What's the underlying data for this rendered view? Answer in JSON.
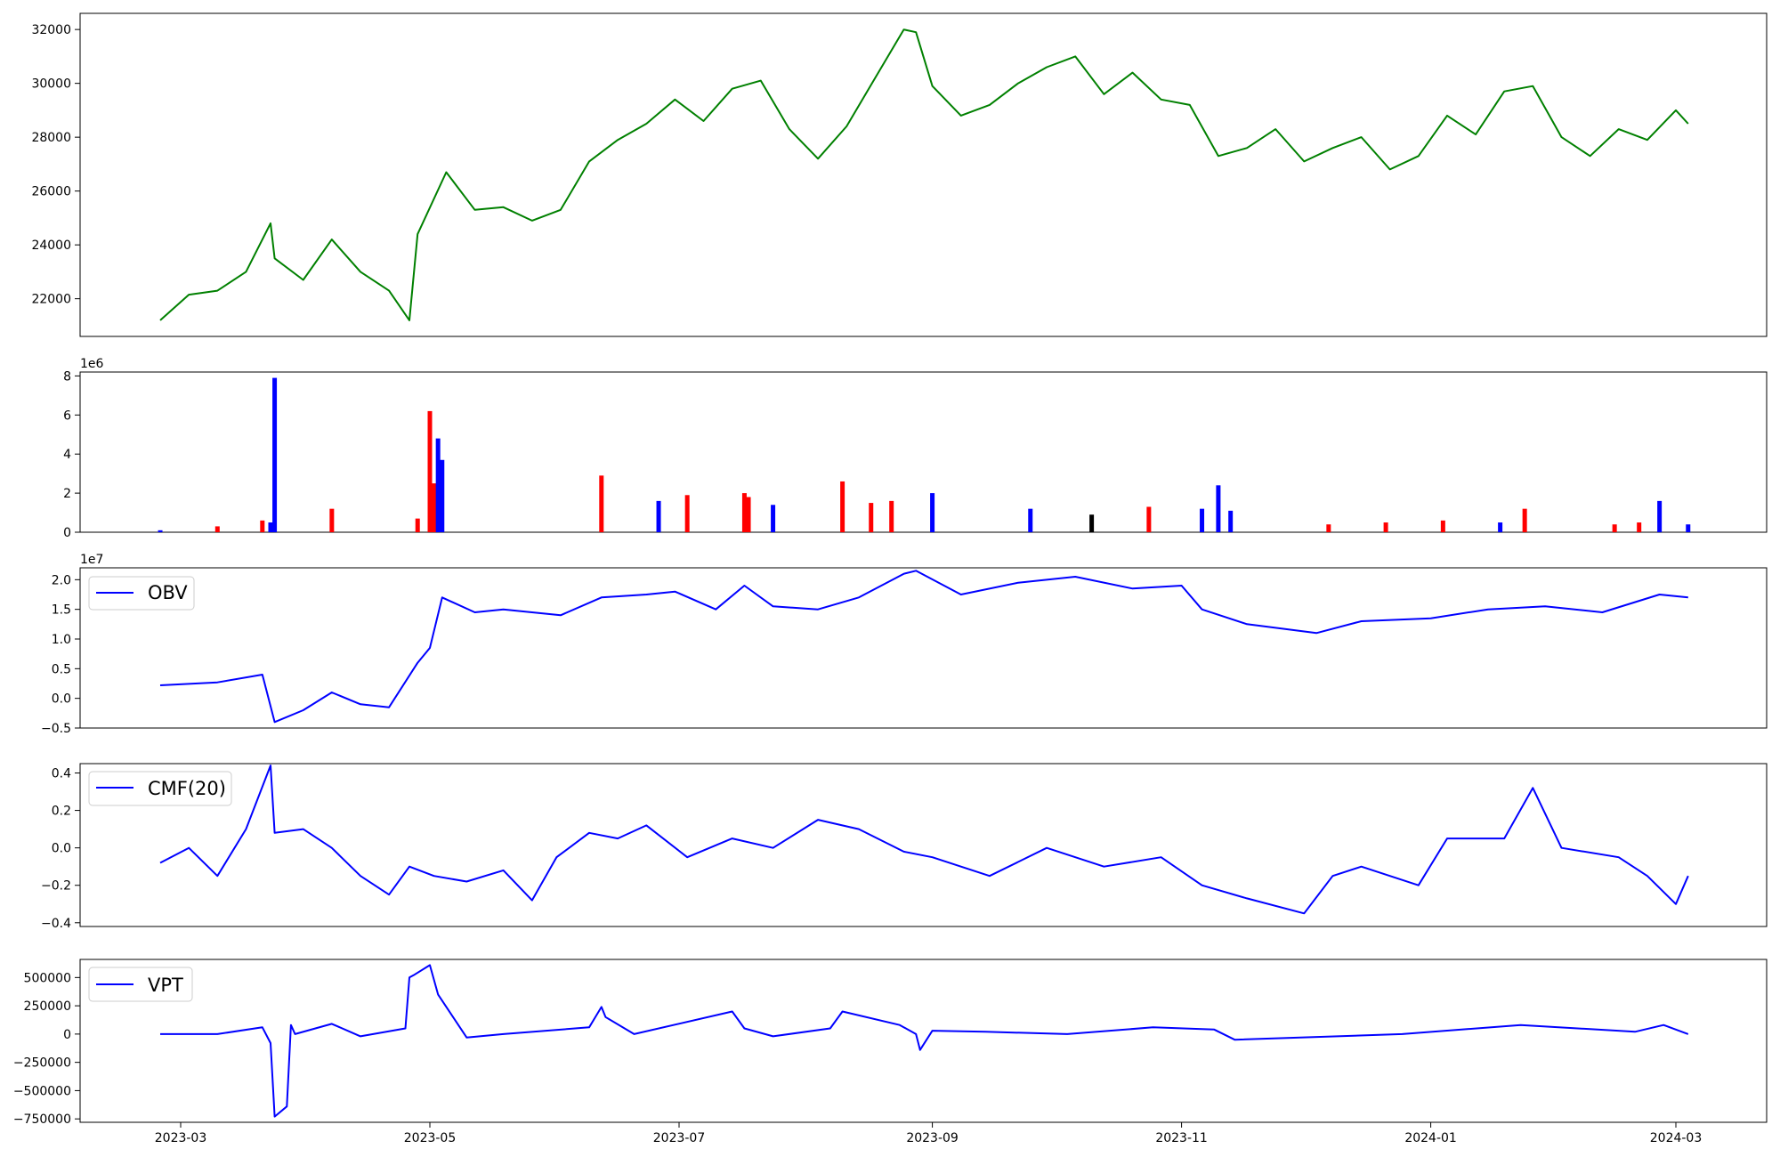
{
  "chart_data": [
    {
      "type": "line",
      "panel": "price",
      "title": "",
      "xlabel": "",
      "ylabel": "",
      "ylim": [
        20600,
        32600
      ],
      "yticks": [
        22000,
        24000,
        26000,
        28000,
        30000,
        32000
      ],
      "color": "#008000",
      "series": [
        {
          "x": [
            "2023-02-24",
            "2023-03-03",
            "2023-03-10",
            "2023-03-17",
            "2023-03-23",
            "2023-03-24",
            "2023-03-31",
            "2023-04-07",
            "2023-04-14",
            "2023-04-21",
            "2023-04-26",
            "2023-04-28",
            "2023-05-05",
            "2023-05-12",
            "2023-05-19",
            "2023-05-26",
            "2023-06-02",
            "2023-06-09",
            "2023-06-16",
            "2023-06-23",
            "2023-06-30",
            "2023-07-07",
            "2023-07-14",
            "2023-07-21",
            "2023-07-28",
            "2023-08-04",
            "2023-08-11",
            "2023-08-18",
            "2023-08-25",
            "2023-08-28",
            "2023-09-01",
            "2023-09-08",
            "2023-09-15",
            "2023-09-22",
            "2023-09-29",
            "2023-10-06",
            "2023-10-13",
            "2023-10-20",
            "2023-10-27",
            "2023-11-03",
            "2023-11-10",
            "2023-11-17",
            "2023-11-24",
            "2023-12-01",
            "2023-12-08",
            "2023-12-15",
            "2023-12-22",
            "2023-12-29",
            "2024-01-05",
            "2024-01-12",
            "2024-01-19",
            "2024-01-26",
            "2024-02-02",
            "2024-02-09",
            "2024-02-16",
            "2024-02-23",
            "2024-03-01",
            "2024-03-04"
          ],
          "values": [
            21200,
            22150,
            22300,
            23000,
            24800,
            23500,
            22700,
            24200,
            23000,
            22300,
            21200,
            24400,
            26700,
            25300,
            25400,
            24900,
            25300,
            27100,
            27900,
            28500,
            29400,
            28600,
            29800,
            30100,
            28300,
            27200,
            28400,
            30200,
            32000,
            31900,
            29900,
            28800,
            29200,
            30000,
            30600,
            31000,
            29600,
            30400,
            29400,
            29200,
            27300,
            27600,
            28300,
            27100,
            27600,
            28000,
            26800,
            27300,
            28800,
            28100,
            29700,
            29900,
            28000,
            27300,
            28300,
            27900,
            29000,
            28500
          ]
        }
      ]
    },
    {
      "type": "bar",
      "panel": "volume",
      "title": "",
      "xlabel": "",
      "ylabel": "",
      "ylim": [
        0,
        8.2
      ],
      "yticks": [
        0,
        2,
        4,
        6,
        8
      ],
      "multiplier_label": "1e6",
      "colors": {
        "up": "#ff0000",
        "down": "#0000ff",
        "flat": "#000000"
      },
      "series": [
        {
          "name": "",
          "x": [
            "2023-02-24",
            "2023-03-10",
            "2023-03-21",
            "2023-03-23",
            "2023-03-24",
            "2023-04-07",
            "2023-04-28",
            "2023-05-01",
            "2023-05-02",
            "2023-05-03",
            "2023-05-04",
            "2023-06-12",
            "2023-06-26",
            "2023-07-03",
            "2023-07-17",
            "2023-07-18",
            "2023-07-24",
            "2023-08-10",
            "2023-08-17",
            "2023-08-22",
            "2023-09-01",
            "2023-09-25",
            "2023-10-10",
            "2023-10-24",
            "2023-11-06",
            "2023-11-10",
            "2023-11-13",
            "2023-12-07",
            "2023-12-21",
            "2024-01-04",
            "2024-01-18",
            "2024-01-24",
            "2024-02-15",
            "2024-02-21",
            "2024-02-26",
            "2024-03-04"
          ],
          "values": [
            0.1,
            0.3,
            0.6,
            0.5,
            7.9,
            1.2,
            0.7,
            6.2,
            2.5,
            4.8,
            3.7,
            2.9,
            1.6,
            1.9,
            2.0,
            1.8,
            1.4,
            2.6,
            1.5,
            1.6,
            2.0,
            1.2,
            0.9,
            1.3,
            1.2,
            2.4,
            1.1,
            0.4,
            0.5,
            0.6,
            0.5,
            1.2,
            0.4,
            0.5,
            1.6,
            0.4
          ],
          "direction": [
            "down",
            "up",
            "up",
            "down",
            "down",
            "up",
            "up",
            "up",
            "up",
            "down",
            "down",
            "up",
            "down",
            "up",
            "up",
            "up",
            "down",
            "up",
            "up",
            "up",
            "down",
            "down",
            "flat",
            "up",
            "down",
            "down",
            "down",
            "up",
            "up",
            "up",
            "down",
            "up",
            "up",
            "up",
            "down",
            "down"
          ]
        }
      ]
    },
    {
      "type": "line",
      "panel": "obv",
      "title": "",
      "xlabel": "",
      "ylabel": "",
      "ylim": [
        -0.5,
        2.2
      ],
      "yticks": [
        -0.5,
        0.0,
        0.5,
        1.0,
        1.5,
        2.0
      ],
      "ytick_labels": [
        "−0.5",
        "0.0",
        "0.5",
        "1.0",
        "1.5",
        "2.0"
      ],
      "multiplier_label": "1e7",
      "legend_position": "top-left",
      "color": "#0000ff",
      "series": [
        {
          "name": "OBV",
          "x": [
            "2023-02-24",
            "2023-03-10",
            "2023-03-21",
            "2023-03-24",
            "2023-03-31",
            "2023-04-07",
            "2023-04-14",
            "2023-04-21",
            "2023-04-28",
            "2023-05-01",
            "2023-05-04",
            "2023-05-12",
            "2023-05-19",
            "2023-06-02",
            "2023-06-12",
            "2023-06-23",
            "2023-06-30",
            "2023-07-10",
            "2023-07-17",
            "2023-07-24",
            "2023-08-04",
            "2023-08-14",
            "2023-08-25",
            "2023-08-28",
            "2023-09-08",
            "2023-09-22",
            "2023-10-06",
            "2023-10-20",
            "2023-11-01",
            "2023-11-06",
            "2023-11-17",
            "2023-12-04",
            "2023-12-15",
            "2024-01-01",
            "2024-01-15",
            "2024-01-29",
            "2024-02-12",
            "2024-02-26",
            "2024-03-04"
          ],
          "values": [
            0.22,
            0.27,
            0.4,
            -0.4,
            -0.2,
            0.1,
            -0.1,
            -0.15,
            0.6,
            0.85,
            1.7,
            1.45,
            1.5,
            1.4,
            1.7,
            1.75,
            1.8,
            1.5,
            1.9,
            1.55,
            1.5,
            1.7,
            2.1,
            2.15,
            1.75,
            1.95,
            2.05,
            1.85,
            1.9,
            1.5,
            1.25,
            1.1,
            1.3,
            1.35,
            1.5,
            1.55,
            1.45,
            1.75,
            1.7
          ]
        }
      ]
    },
    {
      "type": "line",
      "panel": "cmf",
      "title": "",
      "xlabel": "",
      "ylabel": "",
      "ylim": [
        -0.42,
        0.45
      ],
      "yticks": [
        -0.4,
        -0.2,
        0.0,
        0.2,
        0.4
      ],
      "ytick_labels": [
        "−0.4",
        "−0.2",
        "0.0",
        "0.2",
        "0.4"
      ],
      "legend_position": "top-left",
      "color": "#0000ff",
      "series": [
        {
          "name": "CMF(20)",
          "x": [
            "2023-02-24",
            "2023-03-03",
            "2023-03-10",
            "2023-03-17",
            "2023-03-23",
            "2023-03-24",
            "2023-03-31",
            "2023-04-07",
            "2023-04-14",
            "2023-04-21",
            "2023-04-26",
            "2023-05-02",
            "2023-05-10",
            "2023-05-19",
            "2023-05-26",
            "2023-06-01",
            "2023-06-09",
            "2023-06-16",
            "2023-06-23",
            "2023-07-03",
            "2023-07-14",
            "2023-07-24",
            "2023-08-04",
            "2023-08-14",
            "2023-08-25",
            "2023-09-01",
            "2023-09-15",
            "2023-09-29",
            "2023-10-13",
            "2023-10-27",
            "2023-11-06",
            "2023-11-17",
            "2023-12-01",
            "2023-12-08",
            "2023-12-15",
            "2023-12-29",
            "2024-01-05",
            "2024-01-19",
            "2024-01-26",
            "2024-02-02",
            "2024-02-16",
            "2024-02-23",
            "2024-03-01",
            "2024-03-04"
          ],
          "values": [
            -0.08,
            0.0,
            -0.15,
            0.1,
            0.44,
            0.08,
            0.1,
            0.0,
            -0.15,
            -0.25,
            -0.1,
            -0.15,
            -0.18,
            -0.12,
            -0.28,
            -0.05,
            0.08,
            0.05,
            0.12,
            -0.05,
            0.05,
            0.0,
            0.15,
            0.1,
            -0.02,
            -0.05,
            -0.15,
            0.0,
            -0.1,
            -0.05,
            -0.2,
            -0.27,
            -0.35,
            -0.15,
            -0.1,
            -0.2,
            0.05,
            0.05,
            0.32,
            0.0,
            -0.05,
            -0.15,
            -0.3,
            -0.15
          ]
        }
      ]
    },
    {
      "type": "line",
      "panel": "vpt",
      "title": "",
      "xlabel": "",
      "ylabel": "",
      "ylim": [
        -780000,
        660000
      ],
      "yticks": [
        -750000,
        -500000,
        -250000,
        0,
        250000,
        500000
      ],
      "ytick_labels": [
        "−750000",
        "−500000",
        "−250000",
        "0",
        "250000",
        "500000"
      ],
      "legend_position": "top-left",
      "color": "#0000ff",
      "x_axis": {
        "ticks": [
          "2023-03-01",
          "2023-05-01",
          "2023-07-01",
          "2023-09-01",
          "2023-11-01",
          "2024-01-01",
          "2024-03-01"
        ],
        "tick_labels": [
          "2023-03",
          "2023-05",
          "2023-07",
          "2023-09",
          "2023-11",
          "2024-01",
          "2024-03"
        ]
      },
      "series": [
        {
          "name": "VPT",
          "x": [
            "2023-02-24",
            "2023-03-10",
            "2023-03-21",
            "2023-03-23",
            "2023-03-24",
            "2023-03-27",
            "2023-03-28",
            "2023-03-29",
            "2023-04-07",
            "2023-04-14",
            "2023-04-25",
            "2023-04-26",
            "2023-04-27",
            "2023-05-01",
            "2023-05-03",
            "2023-05-10",
            "2023-05-19",
            "2023-06-09",
            "2023-06-12",
            "2023-06-13",
            "2023-06-20",
            "2023-07-14",
            "2023-07-17",
            "2023-07-24",
            "2023-08-07",
            "2023-08-10",
            "2023-08-24",
            "2023-08-28",
            "2023-08-29",
            "2023-09-01",
            "2023-09-14",
            "2023-10-04",
            "2023-10-25",
            "2023-11-09",
            "2023-11-14",
            "2023-12-25",
            "2024-01-23",
            "2024-02-20",
            "2024-02-27",
            "2024-03-04"
          ],
          "values": [
            0,
            0,
            60000,
            -80000,
            -730000,
            -640000,
            80000,
            0,
            90000,
            -20000,
            50000,
            500000,
            520000,
            610000,
            350000,
            -30000,
            0,
            60000,
            240000,
            150000,
            0,
            200000,
            50000,
            -20000,
            50000,
            200000,
            80000,
            0,
            -140000,
            30000,
            20000,
            0,
            60000,
            40000,
            -50000,
            0,
            80000,
            20000,
            80000,
            0
          ]
        }
      ]
    }
  ]
}
